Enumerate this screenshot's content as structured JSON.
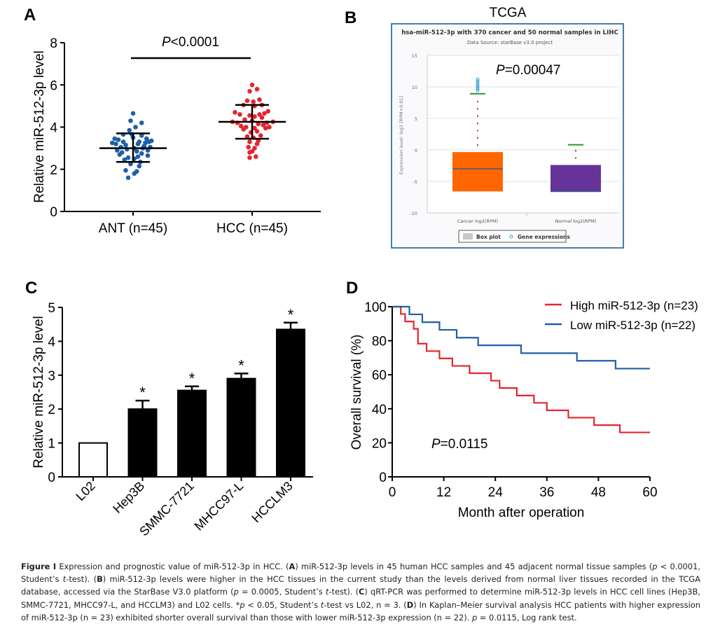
{
  "figure": {
    "panels": {
      "A": "A",
      "B": "B",
      "C": "C",
      "D": "D"
    },
    "caption": {
      "label": "Figure 1",
      "parts": [
        {
          "t": "Figure I",
          "s": "b"
        },
        {
          "t": " Expression and prognostic value of miR-512-3p in HCC. (",
          "s": ""
        },
        {
          "t": "A",
          "s": "b"
        },
        {
          "t": ") miR-512-3p levels in 45 human HCC samples and 45 adjacent normal tissue samples (",
          "s": ""
        },
        {
          "t": "p",
          "s": "i"
        },
        {
          "t": " < 0.0001, Student’s ",
          "s": ""
        },
        {
          "t": "t",
          "s": "i"
        },
        {
          "t": "-test). (",
          "s": ""
        },
        {
          "t": "B",
          "s": "b"
        },
        {
          "t": ") miR-512-3p levels were higher in the HCC tissues in the current study than the levels derived from normal liver tissues recorded in the TCGA database, accessed via the StarBase V3.0 platform (",
          "s": ""
        },
        {
          "t": "p",
          "s": "i"
        },
        {
          "t": " = 0.0005, Student’s ",
          "s": ""
        },
        {
          "t": "t",
          "s": "i"
        },
        {
          "t": "-test). (",
          "s": ""
        },
        {
          "t": "C",
          "s": "b"
        },
        {
          "t": ") qRT-PCR was performed to determine miR-512-3p levels in HCC cell lines (Hep3B, SMMC-7721, MHCC97-L, and HCCLM3) and L02 cells. *",
          "s": ""
        },
        {
          "t": "p",
          "s": "i"
        },
        {
          "t": " < 0.05, Student’s ",
          "s": ""
        },
        {
          "t": "t",
          "s": "i"
        },
        {
          "t": "-test vs L02, n = 3. (",
          "s": ""
        },
        {
          "t": "D",
          "s": "b"
        },
        {
          "t": ") In Kaplan–Meier survival analysis HCC patients with higher expression of miR-512-3p (n = 23) exhibited shorter overall survival than those with lower miR-512-3p expression (n = 22). ",
          "s": ""
        },
        {
          "t": "p",
          "s": "i"
        },
        {
          "t": " = 0.0115, Log rank test.",
          "s": ""
        }
      ]
    }
  },
  "chart_data": [
    {
      "id": "A",
      "type": "scatter",
      "title": "",
      "ylabel": "Relative miR-512-3p level",
      "xlabel": "",
      "ylim": [
        0,
        8
      ],
      "yticks": [
        0,
        2,
        4,
        6,
        8
      ],
      "categories": [
        "ANT (n=45)",
        "HCC (n=45)"
      ],
      "annotation": {
        "prefix": "P",
        "text": "<0.0001"
      },
      "series": [
        {
          "name": "ANT (n=45)",
          "color": "#1f5fa8",
          "mean": 3.0,
          "sd_low": 2.35,
          "sd_high": 3.7,
          "values": [
            4.65,
            4.3,
            4.2,
            4.0,
            3.85,
            3.65,
            3.65,
            3.6,
            3.5,
            3.45,
            3.45,
            3.4,
            3.35,
            3.3,
            3.3,
            3.3,
            3.25,
            3.25,
            3.2,
            3.2,
            3.15,
            3.1,
            3.05,
            3.05,
            3.0,
            3.0,
            2.95,
            2.9,
            2.9,
            2.85,
            2.8,
            2.75,
            2.7,
            2.65,
            2.6,
            2.55,
            2.5,
            2.45,
            2.35,
            2.25,
            2.15,
            1.95,
            1.9,
            1.8,
            1.6
          ],
          "jitter": [
            0,
            -0.1,
            0.35,
            0.1,
            -0.15,
            -0.4,
            -0.05,
            0.35,
            0.0,
            -0.75,
            0.55,
            -0.6,
            0.75,
            -0.4,
            0.25,
            0.65,
            -0.85,
            0.5,
            -0.7,
            0.2,
            -0.3,
            0.45,
            -0.5,
            0.7,
            0.05,
            0.4,
            -0.25,
            -0.65,
            0.6,
            0.15,
            -0.45,
            0.35,
            -0.55,
            0.6,
            0.2,
            -0.2,
            0.05,
            -0.35,
            0.3,
            -0.1,
            0.25,
            -0.3,
            0.15,
            0.05,
            -0.2
          ]
        },
        {
          "name": "HCC (n=45)",
          "color": "#e3262e",
          "mean": 4.25,
          "sd_low": 3.45,
          "sd_high": 5.05,
          "values": [
            6.0,
            5.8,
            5.7,
            5.3,
            5.25,
            5.2,
            5.05,
            5.05,
            5.0,
            4.75,
            4.7,
            4.65,
            4.6,
            4.6,
            4.55,
            4.5,
            4.45,
            4.35,
            4.3,
            4.25,
            4.25,
            4.2,
            4.2,
            4.15,
            4.1,
            4.05,
            4.0,
            4.0,
            3.95,
            3.95,
            3.9,
            3.8,
            3.75,
            3.6,
            3.55,
            3.5,
            3.35,
            3.3,
            3.2,
            3.05,
            3.0,
            2.85,
            2.8,
            2.6,
            2.55
          ],
          "jitter": [
            0.0,
            0.2,
            -0.1,
            0.3,
            -0.2,
            0.05,
            -0.35,
            0.4,
            0.1,
            0.65,
            -0.7,
            0.5,
            -0.5,
            0.3,
            -0.1,
            0.1,
            0.4,
            -0.3,
            0.0,
            0.85,
            -0.8,
            0.6,
            -0.6,
            0.25,
            0.45,
            -0.45,
            0.7,
            -0.25,
            0.1,
            0.55,
            -0.35,
            0.2,
            -0.05,
            0.35,
            -0.2,
            0.05,
            0.25,
            -0.1,
            0.2,
            -0.15,
            0.1,
            0.0,
            -0.1,
            0.15,
            -0.1
          ]
        }
      ]
    },
    {
      "id": "B",
      "type": "box",
      "heading": "TCGA",
      "title": "hsa-miR-512-3p with 370 cancer and 50 normal samples in LIHC",
      "subtitle": "Data Source: starBase v3.0 project",
      "ylabel": "Expression level: log2 [RPM+0.01]",
      "ylim": [
        -10,
        15
      ],
      "yticks": [
        -10,
        -5,
        0,
        5,
        10,
        15
      ],
      "annotation": {
        "prefix": "P",
        "text": "=0.00047"
      },
      "categories": [
        "Cancer log2(RPM)",
        "Normal log2(RPM)"
      ],
      "boxes": [
        {
          "name": "Cancer log2(RPM)",
          "color": "#ff6600",
          "min": -6.6,
          "q1": -6.6,
          "median": -3.0,
          "q3": -0.35,
          "whisker_high": 8.9,
          "outliers": [
            9.4,
            9.7,
            10.0,
            10.3,
            10.6,
            10.9,
            11.2
          ]
        },
        {
          "name": "Normal log2(RPM)",
          "color": "#663399",
          "min": -6.6,
          "q1": -6.6,
          "median": -6.6,
          "q3": -2.4,
          "whisker_high": 0.8,
          "outliers": []
        }
      ],
      "legend": [
        "Box plot",
        "Gene expressions"
      ],
      "legend_colors": [
        "#c8c8c8",
        "#3aa0c8"
      ],
      "grid": true
    },
    {
      "id": "C",
      "type": "bar",
      "ylabel": "Relative miR-512-3p level",
      "xlabel": "",
      "ylim": [
        0,
        5
      ],
      "yticks": [
        0,
        1,
        2,
        3,
        4,
        5
      ],
      "categories": [
        "L02",
        "Hep3B",
        "SMMC-7721",
        "MHCC97-L",
        "HCCLM3"
      ],
      "values": [
        1.0,
        2.0,
        2.55,
        2.9,
        4.35
      ],
      "errors": [
        0,
        0.25,
        0.12,
        0.15,
        0.2
      ],
      "significance": [
        "",
        "*",
        "*",
        "*",
        "*"
      ],
      "fills": [
        "#ffffff",
        "#000000",
        "#000000",
        "#000000",
        "#000000"
      ]
    },
    {
      "id": "D",
      "type": "line",
      "subtype": "kaplan-meier",
      "xlabel": "Month after operation",
      "ylabel": "Overall survival (%)",
      "xlim": [
        0,
        60
      ],
      "ylim": [
        0,
        100
      ],
      "xticks": [
        0,
        12,
        24,
        36,
        48,
        60
      ],
      "yticks": [
        0,
        20,
        40,
        60,
        80,
        100
      ],
      "annotation": {
        "prefix": "P",
        "text": "=0.0115"
      },
      "legend_position": "top-right",
      "series": [
        {
          "name": "High miR-512-3p (n=23)",
          "color": "#e3262e",
          "steps": [
            [
              0,
              100
            ],
            [
              2,
              95.7
            ],
            [
              3,
              91.3
            ],
            [
              5,
              87.0
            ],
            [
              6,
              78.3
            ],
            [
              8,
              73.9
            ],
            [
              11,
              69.6
            ],
            [
              14,
              65.2
            ],
            [
              18,
              60.9
            ],
            [
              23,
              56.5
            ],
            [
              25,
              52.2
            ],
            [
              29,
              47.8
            ],
            [
              33,
              43.5
            ],
            [
              36,
              39.1
            ],
            [
              41,
              34.8
            ],
            [
              47,
              30.4
            ],
            [
              53,
              26.1
            ],
            [
              60,
              26.1
            ]
          ]
        },
        {
          "name": "Low miR-512-3p (n=22)",
          "color": "#1f5fa8",
          "steps": [
            [
              0,
              100
            ],
            [
              4,
              95.5
            ],
            [
              7,
              90.9
            ],
            [
              11,
              86.4
            ],
            [
              15,
              81.8
            ],
            [
              20,
              77.3
            ],
            [
              30,
              72.7
            ],
            [
              43,
              68.2
            ],
            [
              52,
              63.6
            ],
            [
              60,
              63.6
            ]
          ]
        }
      ]
    }
  ]
}
